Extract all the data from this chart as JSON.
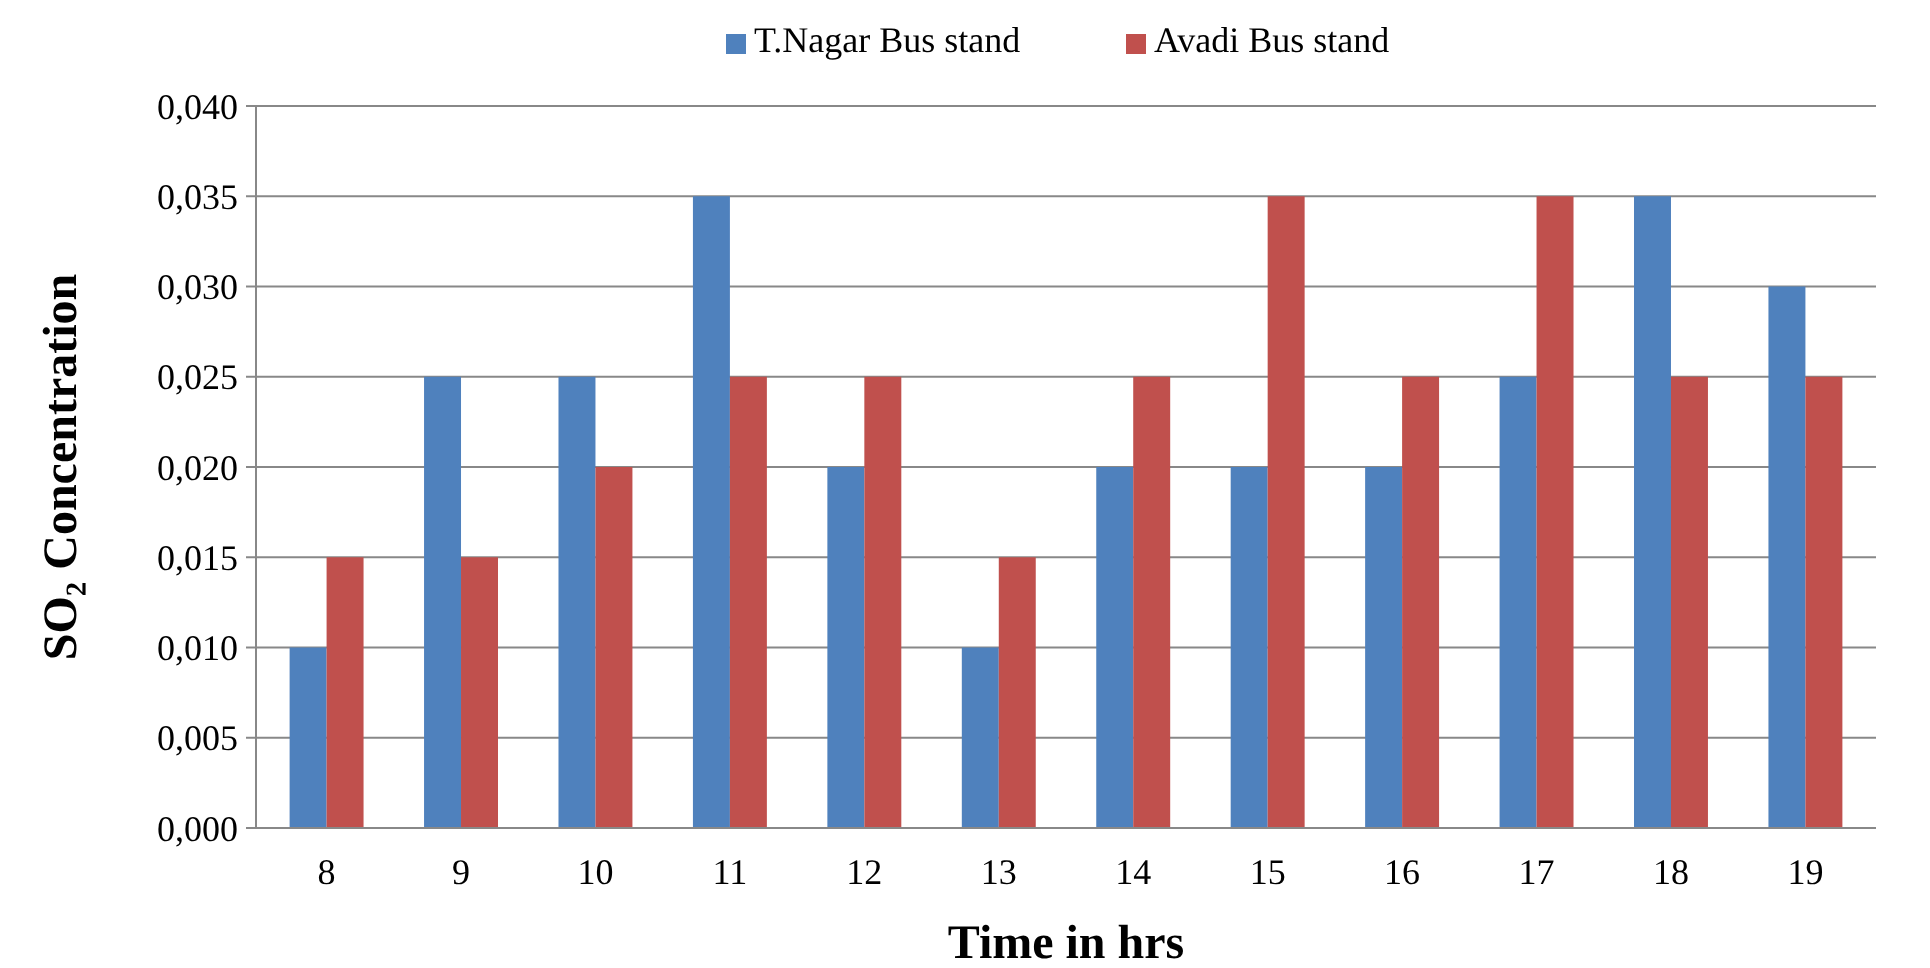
{
  "chart_data": {
    "type": "bar",
    "xlabel": "Time  in hrs",
    "ylabel": "SO₂ Concentration",
    "categories": [
      "8",
      "9",
      "10",
      "11",
      "12",
      "13",
      "14",
      "15",
      "16",
      "17",
      "18",
      "19"
    ],
    "series": [
      {
        "name": "T.Nagar Bus stand",
        "color": "#4f81bd",
        "values": [
          0.01,
          0.025,
          0.025,
          0.035,
          0.02,
          0.01,
          0.02,
          0.02,
          0.02,
          0.025,
          0.035,
          0.03
        ]
      },
      {
        "name": "Avadi Bus stand",
        "color": "#c0504d",
        "values": [
          0.015,
          0.015,
          0.02,
          0.025,
          0.025,
          0.015,
          0.025,
          0.035,
          0.025,
          0.035,
          0.025,
          0.025
        ]
      }
    ],
    "ylim": [
      0,
      0.04
    ],
    "yticks": [
      {
        "value": 0,
        "label": "0,000"
      },
      {
        "value": 0.005,
        "label": "0,005"
      },
      {
        "value": 0.01,
        "label": "0,010"
      },
      {
        "value": 0.015,
        "label": "0,015"
      },
      {
        "value": 0.02,
        "label": "0,020"
      },
      {
        "value": 0.025,
        "label": "0,025"
      },
      {
        "value": 0.03,
        "label": "0,030"
      },
      {
        "value": 0.035,
        "label": "0,035"
      },
      {
        "value": 0.04,
        "label": "0,040"
      }
    ],
    "grid": "y",
    "legend": "top"
  }
}
